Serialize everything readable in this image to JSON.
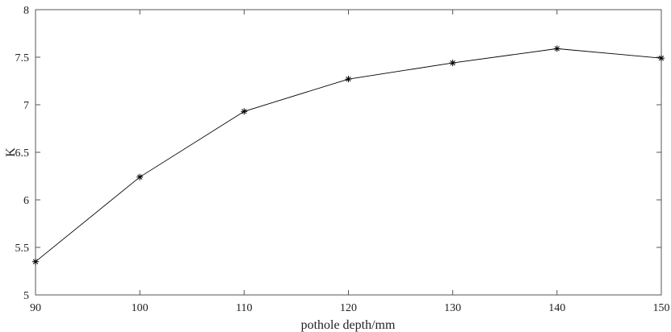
{
  "chart_data": {
    "type": "line",
    "title": "",
    "xlabel": "pothole depth/mm",
    "ylabel": "K",
    "xlim": [
      90,
      150
    ],
    "ylim": [
      5,
      8
    ],
    "xticks": [
      "90",
      "100",
      "110",
      "120",
      "130",
      "140",
      "150"
    ],
    "yticks": [
      "5",
      "5.5",
      "6",
      "6.5",
      "7",
      "7.5",
      "8"
    ],
    "grid": false,
    "marker": "asterisk",
    "line_color": "#000000",
    "series": [
      {
        "x": [
          90,
          100,
          110,
          120,
          130,
          140,
          150
        ],
        "y": [
          5.35,
          6.24,
          6.93,
          7.27,
          7.44,
          7.59,
          7.49
        ]
      }
    ]
  }
}
